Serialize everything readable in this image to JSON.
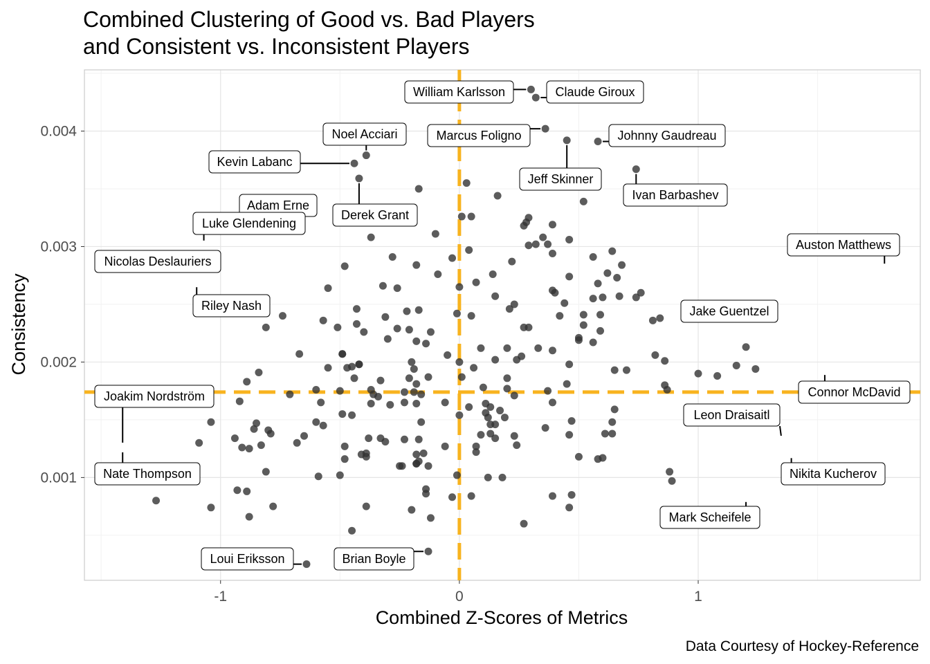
{
  "chart_data": {
    "type": "scatter",
    "title_lines": [
      "Combined Clustering of Good vs. Bad Players",
      "and Consistent vs. Inconsistent Players"
    ],
    "xlabel": "Combined Z-Scores of Metrics",
    "ylabel": "Consistency",
    "caption": "Data Courtesy of Hockey-Reference",
    "xlim": [
      -1.57,
      1.93
    ],
    "ylim": [
      0.00011,
      0.00453
    ],
    "x_ticks": [
      {
        "value": -1,
        "label": "-1"
      },
      {
        "value": 0,
        "label": "0"
      },
      {
        "value": 1,
        "label": "1"
      }
    ],
    "y_ticks": [
      {
        "value": 0.001,
        "label": "0.001"
      },
      {
        "value": 0.002,
        "label": "0.002"
      },
      {
        "value": 0.003,
        "label": "0.003"
      },
      {
        "value": 0.004,
        "label": "0.004"
      }
    ],
    "grid": true,
    "reference_lines": {
      "x": 0.0,
      "y": 0.00174,
      "color": "#F8B31F"
    },
    "point_color": "#333333",
    "points": [
      [
        0.3,
        0.00436
      ],
      [
        0.32,
        0.00429
      ],
      [
        0.36,
        0.00402
      ],
      [
        0.45,
        0.00392
      ],
      [
        0.58,
        0.00391
      ],
      [
        -0.39,
        0.00379
      ],
      [
        -0.44,
        0.00372
      ],
      [
        0.74,
        0.00367
      ],
      [
        -0.42,
        0.00359
      ],
      [
        0.03,
        0.00355
      ],
      [
        -0.17,
        0.0035
      ],
      [
        0.16,
        0.00344
      ],
      [
        0.52,
        0.00339
      ],
      [
        0.01,
        0.00326
      ],
      [
        0.05,
        0.00326
      ],
      [
        0.29,
        0.00325
      ],
      [
        0.28,
        0.00321
      ],
      [
        0.27,
        0.00318
      ],
      [
        0.39,
        0.00319
      ],
      [
        -0.37,
        0.00308
      ],
      [
        0.35,
        0.00308
      ],
      [
        0.46,
        0.00306
      ],
      [
        -0.1,
        0.00311
      ],
      [
        0.29,
        0.00301
      ],
      [
        0.32,
        0.00302
      ],
      [
        0.37,
        0.00302
      ],
      [
        0.04,
        0.00297
      ],
      [
        0.39,
        0.00294
      ],
      [
        0.56,
        0.00291
      ],
      [
        0.64,
        0.00296
      ],
      [
        -0.28,
        0.00291
      ],
      [
        -0.03,
        0.0029
      ],
      [
        0.22,
        0.00287
      ],
      [
        -0.18,
        0.00284
      ],
      [
        -0.48,
        0.00283
      ],
      [
        0.62,
        0.00277
      ],
      [
        0.68,
        0.00284
      ],
      [
        0.66,
        0.00273
      ],
      [
        -0.09,
        0.00276
      ],
      [
        0.14,
        0.00276
      ],
      [
        0.46,
        0.00274
      ],
      [
        0.0,
        0.00265
      ],
      [
        -0.32,
        0.00266
      ],
      [
        -0.26,
        0.00264
      ],
      [
        0.07,
        0.00269
      ],
      [
        0.58,
        0.00268
      ],
      [
        -0.55,
        0.00264
      ],
      [
        0.39,
        0.00262
      ],
      [
        0.4,
        0.0026
      ],
      [
        0.76,
        0.0026
      ],
      [
        0.56,
        0.00255
      ],
      [
        0.6,
        0.00256
      ],
      [
        0.15,
        0.00257
      ],
      [
        0.67,
        0.00257
      ],
      [
        0.74,
        0.00256
      ],
      [
        -0.43,
        0.00246
      ],
      [
        0.21,
        0.00246
      ],
      [
        0.23,
        0.0025
      ],
      [
        0.44,
        0.00251
      ],
      [
        -0.22,
        0.00244
      ],
      [
        -0.17,
        0.00245
      ],
      [
        0.05,
        0.0024
      ],
      [
        -0.01,
        0.00242
      ],
      [
        0.42,
        0.0024
      ],
      [
        0.52,
        0.00241
      ],
      [
        0.59,
        0.00241
      ],
      [
        0.81,
        0.00236
      ],
      [
        0.84,
        0.00238
      ],
      [
        -0.31,
        0.00239
      ],
      [
        -0.57,
        0.00236
      ],
      [
        -0.43,
        0.00233
      ],
      [
        0.52,
        0.00232
      ],
      [
        -0.26,
        0.00229
      ],
      [
        -0.4,
        0.00226
      ],
      [
        0.27,
        0.0023
      ],
      [
        0.29,
        0.0023
      ],
      [
        0.59,
        0.00227
      ],
      [
        -0.51,
        0.0023
      ],
      [
        -0.21,
        0.00228
      ],
      [
        -0.12,
        0.00226
      ],
      [
        -0.3,
        0.0022
      ],
      [
        -0.18,
        0.00218
      ],
      [
        0.5,
        0.00221
      ],
      [
        0.5,
        0.00219
      ],
      [
        0.56,
        0.00217
      ],
      [
        -0.14,
        0.00216
      ],
      [
        0.09,
        0.00212
      ],
      [
        0.2,
        0.00212
      ],
      [
        0.33,
        0.00212
      ],
      [
        0.39,
        0.0021
      ],
      [
        0.82,
        0.00206
      ],
      [
        -0.49,
        0.00207
      ],
      [
        0.15,
        0.00202
      ],
      [
        0.24,
        0.00202
      ],
      [
        -0.45,
        0.00196
      ],
      [
        -0.42,
        0.00198
      ],
      [
        -0.2,
        0.002
      ],
      [
        -0.05,
        0.00206
      ],
      [
        0.0,
        0.002
      ],
      [
        0.26,
        0.00205
      ],
      [
        0.46,
        0.00198
      ],
      [
        0.86,
        0.00201
      ],
      [
        -0.55,
        0.00195
      ],
      [
        -0.19,
        0.00194
      ],
      [
        0.06,
        0.00195
      ],
      [
        0.65,
        0.00193
      ],
      [
        0.7,
        0.00193
      ],
      [
        -0.44,
        0.00186
      ],
      [
        -0.21,
        0.00186
      ],
      [
        -0.13,
        0.00187
      ],
      [
        0.01,
        0.00187
      ],
      [
        0.2,
        0.00186
      ],
      [
        0.45,
        0.00181
      ],
      [
        -0.33,
        0.00184
      ],
      [
        -0.36,
        0.00172
      ],
      [
        -0.18,
        0.00181
      ],
      [
        0.1,
        0.00178
      ],
      [
        0.2,
        0.00177
      ],
      [
        0.23,
        0.00171
      ],
      [
        0.86,
        0.0018
      ],
      [
        0.87,
        0.00176
      ],
      [
        0.37,
        0.00175
      ],
      [
        -0.23,
        0.00174
      ],
      [
        -0.19,
        0.00174
      ],
      [
        -0.16,
        0.00172
      ],
      [
        -0.23,
        0.00165
      ],
      [
        -0.29,
        0.00163
      ],
      [
        -0.18,
        0.00164
      ],
      [
        -0.06,
        0.00165
      ],
      [
        0.11,
        0.00164
      ],
      [
        0.13,
        0.00161
      ],
      [
        0.04,
        0.00161
      ],
      [
        0.0,
        0.00154
      ],
      [
        0.11,
        0.00156
      ],
      [
        0.17,
        0.00158
      ],
      [
        0.39,
        0.00165
      ],
      [
        0.65,
        0.00159
      ],
      [
        -0.49,
        0.00155
      ],
      [
        -0.45,
        0.00154
      ],
      [
        0.12,
        0.00152
      ],
      [
        0.19,
        0.00152
      ],
      [
        0.47,
        0.00149
      ],
      [
        0.64,
        0.00148
      ],
      [
        -0.16,
        0.00148
      ],
      [
        0.13,
        0.00146
      ],
      [
        0.15,
        0.00146
      ],
      [
        0.13,
        0.00138
      ],
      [
        0.36,
        0.00143
      ],
      [
        0.61,
        0.00138
      ],
      [
        0.64,
        0.00138
      ],
      [
        0.09,
        0.00137
      ],
      [
        0.15,
        0.00134
      ],
      [
        0.23,
        0.00136
      ],
      [
        -0.38,
        0.00134
      ],
      [
        -0.33,
        0.00134
      ],
      [
        -0.23,
        0.00133
      ],
      [
        -0.31,
        0.00131
      ],
      [
        -0.17,
        0.00133
      ],
      [
        0.46,
        0.00137
      ],
      [
        -0.48,
        0.00127
      ],
      [
        0.24,
        0.00128
      ],
      [
        -0.41,
        0.0012
      ],
      [
        -0.39,
        0.00121
      ],
      [
        -0.39,
        0.00118
      ],
      [
        -0.15,
        0.00121
      ],
      [
        -0.18,
        0.0012
      ],
      [
        -0.06,
        0.00127
      ],
      [
        0.07,
        0.00127
      ],
      [
        0.07,
        0.00122
      ],
      [
        -0.48,
        0.00116
      ],
      [
        -0.25,
        0.0011
      ],
      [
        -0.24,
        0.0011
      ],
      [
        -0.18,
        0.00112
      ],
      [
        -0.17,
        0.00114
      ],
      [
        -0.18,
        0.00112
      ],
      [
        -0.13,
        0.0011
      ],
      [
        0.5,
        0.00118
      ],
      [
        0.58,
        0.00116
      ],
      [
        0.6,
        0.00117
      ],
      [
        -0.5,
        0.00102
      ],
      [
        -0.01,
        0.00102
      ],
      [
        0.12,
        0.001
      ],
      [
        0.18,
        0.001
      ],
      [
        0.88,
        0.00105
      ],
      [
        0.89,
        0.00097
      ],
      [
        -0.14,
        0.0009
      ],
      [
        -0.14,
        0.00086
      ],
      [
        0.05,
        0.00084
      ],
      [
        0.39,
        0.00084
      ],
      [
        0.47,
        0.00085
      ],
      [
        -0.03,
        0.00083
      ],
      [
        -0.39,
        0.00075
      ],
      [
        0.46,
        0.00074
      ],
      [
        -0.2,
        0.00072
      ],
      [
        -0.12,
        0.00065
      ],
      [
        0.27,
        0.0006
      ],
      [
        -0.45,
        0.00054
      ],
      [
        -0.13,
        0.00036
      ],
      [
        -1.27,
        0.0008
      ],
      [
        -1.04,
        0.00074
      ],
      [
        -0.93,
        0.00089
      ],
      [
        -0.89,
        0.00088
      ],
      [
        -0.88,
        0.00066
      ],
      [
        -0.78,
        0.00075
      ],
      [
        -1.09,
        0.0013
      ],
      [
        -0.91,
        0.00126
      ],
      [
        -0.88,
        0.00125
      ],
      [
        -0.83,
        0.00128
      ],
      [
        -0.8,
        0.00141
      ],
      [
        -0.79,
        0.00138
      ],
      [
        -0.85,
        0.00147
      ],
      [
        -0.86,
        0.00142
      ],
      [
        -0.94,
        0.00134
      ],
      [
        -0.81,
        0.00105
      ],
      [
        -0.68,
        0.0013
      ],
      [
        -0.65,
        0.00136
      ],
      [
        -0.6,
        0.00148
      ],
      [
        -0.57,
        0.00145
      ],
      [
        -0.59,
        0.00101
      ],
      [
        -1.04,
        0.00148
      ],
      [
        -0.92,
        0.00166
      ],
      [
        -0.89,
        0.00183
      ],
      [
        -0.84,
        0.00191
      ],
      [
        -0.71,
        0.00172
      ],
      [
        -0.6,
        0.00176
      ],
      [
        -0.58,
        0.00165
      ],
      [
        -0.81,
        0.0023
      ],
      [
        -0.74,
        0.0024
      ],
      [
        -0.67,
        0.00207
      ],
      [
        -0.49,
        0.00207
      ],
      [
        -0.42,
        0.00198
      ],
      [
        -0.5,
        0.00175
      ],
      [
        -0.47,
        0.00195
      ],
      [
        -0.37,
        0.00176
      ],
      [
        -0.34,
        0.0017
      ],
      [
        -0.37,
        0.00164
      ],
      [
        1.0,
        0.0019
      ],
      [
        1.08,
        0.00188
      ],
      [
        1.16,
        0.00197
      ],
      [
        1.2,
        0.00213
      ],
      [
        1.24,
        0.00194
      ],
      [
        -0.64,
        0.00025
      ]
    ],
    "labeled_points": [
      {
        "name": "William Karlsson",
        "x": 0.3,
        "y": 0.00436
      },
      {
        "name": "Claude Giroux",
        "x": 0.32,
        "y": 0.00429
      },
      {
        "name": "Marcus Foligno",
        "x": 0.36,
        "y": 0.00402
      },
      {
        "name": "Jeff Skinner",
        "x": 0.45,
        "y": 0.00392
      },
      {
        "name": "Johnny Gaudreau",
        "x": 0.58,
        "y": 0.00391
      },
      {
        "name": "Noel Acciari",
        "x": -0.39,
        "y": 0.00379
      },
      {
        "name": "Kevin Labanc",
        "x": -0.44,
        "y": 0.00372
      },
      {
        "name": "Ivan Barbashev",
        "x": 0.74,
        "y": 0.00367
      },
      {
        "name": "Derek Grant",
        "x": -0.42,
        "y": 0.00359
      },
      {
        "name": "Adam Erne",
        "x": -0.95,
        "y": 0.00313
      },
      {
        "name": "Luke Glendening",
        "x": -1.07,
        "y": 0.00301
      },
      {
        "name": "Nicolas Deslauriers",
        "x": -1.09,
        "y": 0.00301
      },
      {
        "name": "Riley Nash",
        "x": -1.1,
        "y": 0.00269
      },
      {
        "name": "Auston Matthews",
        "x": 1.78,
        "y": 0.00281
      },
      {
        "name": "Jake Guentzel",
        "x": 1.22,
        "y": 0.00256
      },
      {
        "name": "Connor McDavid",
        "x": 1.53,
        "y": 0.00193
      },
      {
        "name": "Joakim Nordström",
        "x": -1.41,
        "y": 0.00126
      },
      {
        "name": "Nate Thompson",
        "x": -1.41,
        "y": 0.00126
      },
      {
        "name": "Leon Draisaitl",
        "x": 1.35,
        "y": 0.00132
      },
      {
        "name": "Nikita Kucherov",
        "x": 1.39,
        "y": 0.00121
      },
      {
        "name": "Mark Scheifele",
        "x": 1.2,
        "y": 0.00083
      },
      {
        "name": "Loui Eriksson",
        "x": -0.64,
        "y": 0.00025
      },
      {
        "name": "Brian Boyle",
        "x": -0.13,
        "y": 0.00036
      }
    ]
  }
}
